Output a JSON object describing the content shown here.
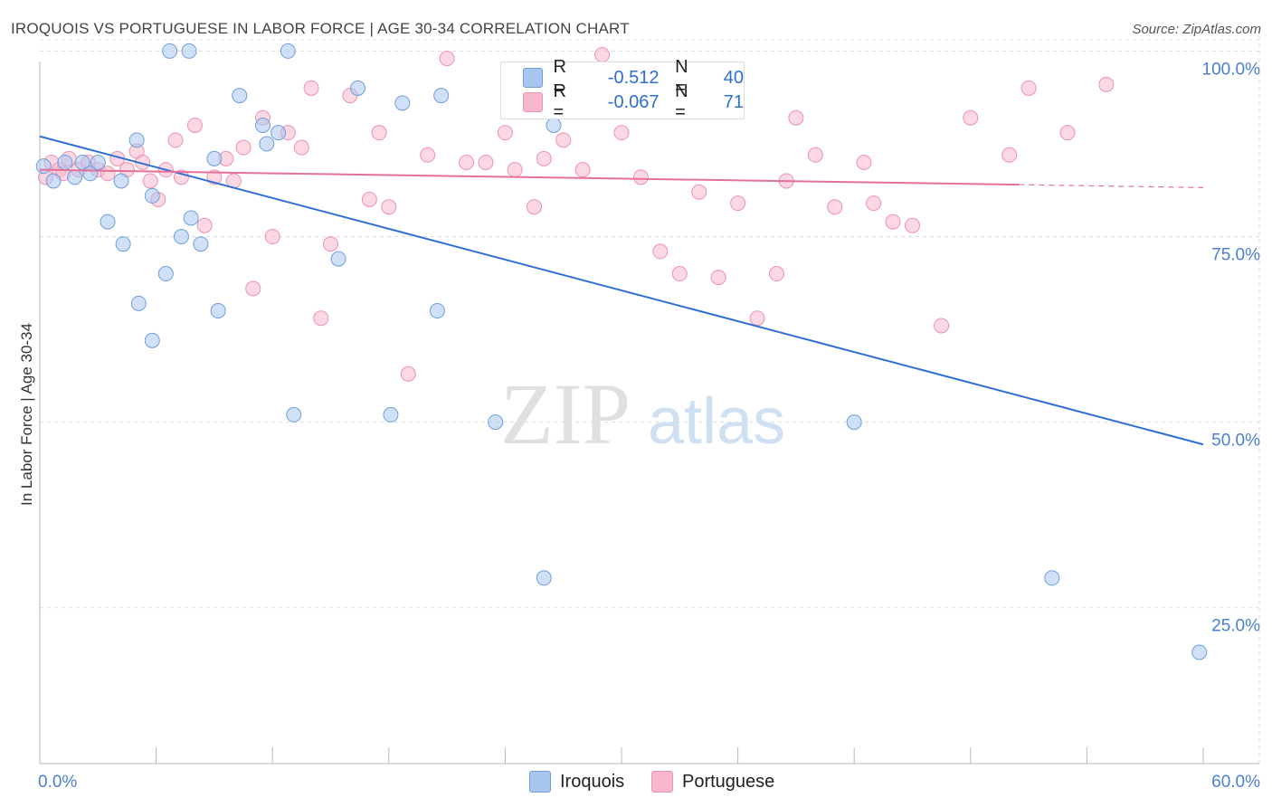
{
  "title": "IROQUOIS VS PORTUGUESE IN LABOR FORCE | AGE 30-34 CORRELATION CHART",
  "source": "Source: ZipAtlas.com",
  "watermark": {
    "zip": "ZIP",
    "atlas": "atlas"
  },
  "legend_top": {
    "rows": [
      {
        "r_label": "R =",
        "r_value": "-0.512",
        "n_label": "N =",
        "n_value": "40",
        "color": "#a9c6f0"
      },
      {
        "r_label": "R =",
        "r_value": "-0.067",
        "n_label": "N =",
        "n_value": "71",
        "color": "#f7b8cb"
      }
    ]
  },
  "legend_bottom": {
    "items": [
      {
        "label": "Iroquois",
        "color": "#a9c6f0"
      },
      {
        "label": "Portuguese",
        "color": "#f7b8cb"
      }
    ]
  },
  "colors": {
    "iroquois_fill": "#a9c6f0",
    "iroquois_stroke": "#6f9edb",
    "iroquois_line": "#2d6fd6",
    "portuguese_fill": "#f7b8cb",
    "portuguese_stroke": "#ec93af",
    "portuguese_line": "#e4719a",
    "tick_label": "#4a7fd4",
    "grid": "#dcdcdc"
  },
  "chart_data": {
    "type": "scatter",
    "title": "IROQUOIS VS PORTUGUESE IN LABOR FORCE | AGE 30-34 CORRELATION CHART",
    "xlabel": "",
    "ylabel": "In Labor Force | Age 30-34",
    "xlim": [
      0,
      60
    ],
    "ylim": [
      4,
      102
    ],
    "x_tick_labels": [
      {
        "value": 0,
        "label": "0.0%"
      },
      {
        "value": 60,
        "label": "60.0%"
      }
    ],
    "y_tick_labels": [
      {
        "value": 100,
        "label": "100.0%"
      },
      {
        "value": 75,
        "label": "75.0%"
      },
      {
        "value": 50,
        "label": "50.0%"
      },
      {
        "value": 25,
        "label": "25.0%"
      }
    ],
    "x_minor_ticks": [
      6,
      12,
      18,
      24,
      30,
      36,
      42,
      48,
      54,
      60
    ],
    "series": [
      {
        "name": "Iroquois",
        "x": [
          0.2,
          0.7,
          1.3,
          1.8,
          2.2,
          2.6,
          3.0,
          3.5,
          4.2,
          4.3,
          5.0,
          5.1,
          5.8,
          5.8,
          6.5,
          6.7,
          7.3,
          7.7,
          7.8,
          8.3,
          9.0,
          9.2,
          10.3,
          11.5,
          11.7,
          12.3,
          12.8,
          13.1,
          15.4,
          16.4,
          18.1,
          18.7,
          20.5,
          20.7,
          23.5,
          26.0,
          26.5,
          42.0,
          52.2,
          59.8
        ],
        "y": [
          84.5,
          82.5,
          85.0,
          83.0,
          85.0,
          83.5,
          85.0,
          77.0,
          82.5,
          74.0,
          88.0,
          66.0,
          80.5,
          61.0,
          70.0,
          100.0,
          75.0,
          100.0,
          77.5,
          74.0,
          85.5,
          65.0,
          94.0,
          90.0,
          87.5,
          89.0,
          100.0,
          51.0,
          72.0,
          95.0,
          51.0,
          93.0,
          65.0,
          94.0,
          50.0,
          29.0,
          90.0,
          50.0,
          29.0,
          19.0
        ]
      },
      {
        "name": "Portuguese",
        "x": [
          0.3,
          0.6,
          1.0,
          1.2,
          1.5,
          2.0,
          2.5,
          3.0,
          3.5,
          4.0,
          4.5,
          5.0,
          5.3,
          5.7,
          6.1,
          6.5,
          7.0,
          7.3,
          8.0,
          8.5,
          9.0,
          9.6,
          10.0,
          10.5,
          11.0,
          11.5,
          12.0,
          12.8,
          13.5,
          14.0,
          14.5,
          15.0,
          16.0,
          17.0,
          17.5,
          18.0,
          19.0,
          20.0,
          21.0,
          22.0,
          23.0,
          24.0,
          24.5,
          25.5,
          26.0,
          27.0,
          28.0,
          29.0,
          30.0,
          31.0,
          32.0,
          33.0,
          34.0,
          35.0,
          36.0,
          37.0,
          38.0,
          38.5,
          39.0,
          40.0,
          41.0,
          42.5,
          43.0,
          44.0,
          45.0,
          46.5,
          48.0,
          50.0,
          51.0,
          53.0,
          55.0
        ],
        "y": [
          83.0,
          85.0,
          84.0,
          83.5,
          85.5,
          84.0,
          85.0,
          84.0,
          83.5,
          85.5,
          84.0,
          86.5,
          85.0,
          82.5,
          80.0,
          84.0,
          88.0,
          83.0,
          90.0,
          76.5,
          83.0,
          85.5,
          82.5,
          87.0,
          68.0,
          91.0,
          75.0,
          89.0,
          87.0,
          95.0,
          64.0,
          74.0,
          94.0,
          80.0,
          89.0,
          79.0,
          56.5,
          86.0,
          99.0,
          85.0,
          85.0,
          89.0,
          84.0,
          79.0,
          85.5,
          88.0,
          84.0,
          99.5,
          89.0,
          83.0,
          73.0,
          70.0,
          81.0,
          69.5,
          79.5,
          64.0,
          70.0,
          82.5,
          91.0,
          86.0,
          79.0,
          85.0,
          79.5,
          77.0,
          76.5,
          63.0,
          91.0,
          86.0,
          95.0,
          89.0,
          95.5
        ]
      }
    ],
    "trendlines": [
      {
        "series": "Iroquois",
        "x_start": 0,
        "y_start": 88.5,
        "x_end": 60,
        "y_end": 47.0
      },
      {
        "series": "Portuguese",
        "x_start": 0,
        "y_start": 84.0,
        "x_end": 50.5,
        "y_end": 82.0,
        "dashed_to_x": 60,
        "dashed_to_y": 81.6
      }
    ]
  }
}
